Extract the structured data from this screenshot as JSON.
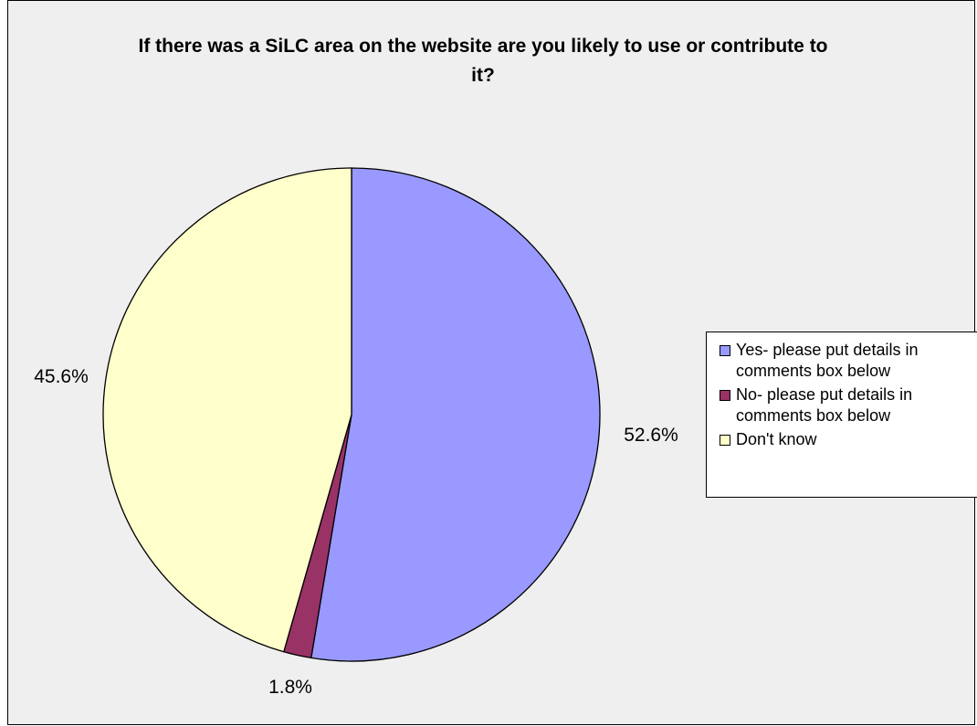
{
  "chart_data": {
    "type": "pie",
    "title": "If there was a SiLC area on the website are you likely to use or contribute to it?",
    "slices": [
      {
        "label": "Yes- please put details in comments box below",
        "value": 52.6,
        "display": "52.6%",
        "color": "#9999ff"
      },
      {
        "label": "No- please put details in comments box below",
        "value": 1.8,
        "display": "1.8%",
        "color": "#993366"
      },
      {
        "label": "Don't know",
        "value": 45.6,
        "display": "45.6%",
        "color": "#ffffcc"
      }
    ],
    "start_angle_deg": 0,
    "direction": "clockwise",
    "legend_position": "right"
  }
}
